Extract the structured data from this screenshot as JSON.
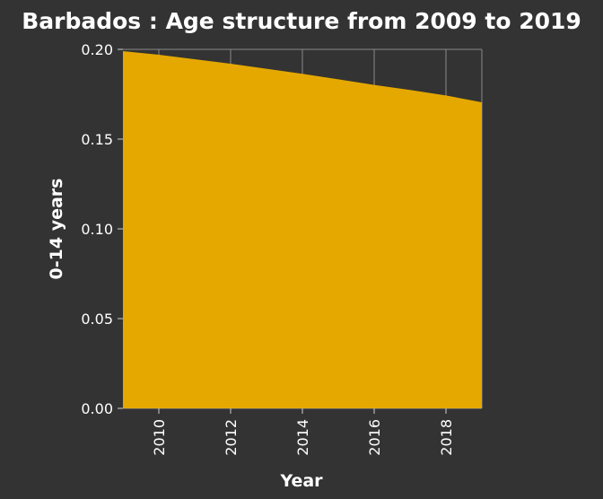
{
  "chart_data": {
    "type": "area",
    "title": "Barbados : Age structure from 2009 to 2019",
    "xlabel": "Year",
    "ylabel": "0-14 years",
    "x": [
      2009,
      2010,
      2011,
      2012,
      2013,
      2014,
      2015,
      2016,
      2017,
      2018,
      2019
    ],
    "values": [
      0.199,
      0.197,
      0.1945,
      0.192,
      0.1892,
      0.1864,
      0.1833,
      0.1802,
      0.1774,
      0.1743,
      0.1705
    ],
    "xlim": [
      2009,
      2019
    ],
    "ylim": [
      0,
      0.2
    ],
    "xticks": [
      "2010",
      "2012",
      "2014",
      "2016",
      "2018"
    ],
    "yticks": [
      "0.00",
      "0.05",
      "0.10",
      "0.15",
      "0.20"
    ],
    "grid": true,
    "colors": {
      "area": "#e5a800",
      "background": "#333333",
      "grid": "#8a8a8a"
    }
  }
}
